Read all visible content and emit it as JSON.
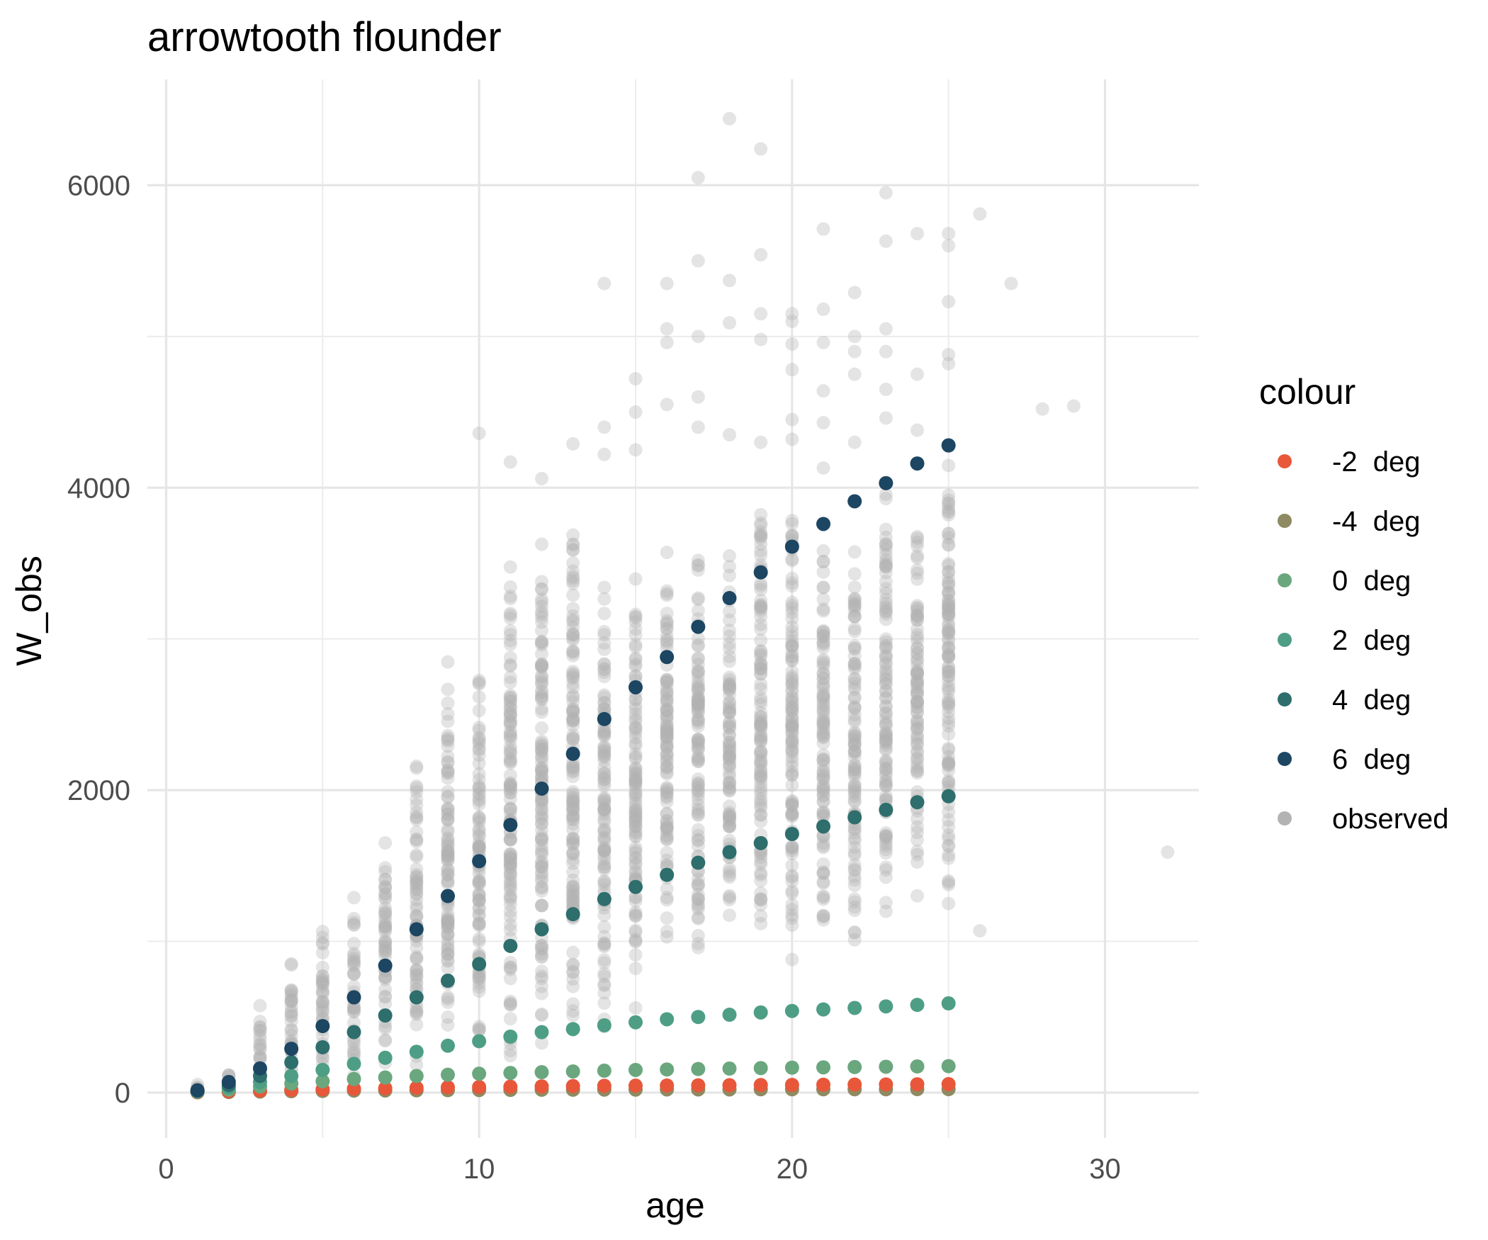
{
  "chart_data": {
    "type": "scatter",
    "title": "arrowtooth flounder",
    "xlabel": "age",
    "ylabel": "W_obs",
    "xlim": [
      -0.6,
      33.0
    ],
    "ylim": [
      -300,
      6700
    ],
    "x_ticks": [
      0,
      10,
      20,
      30
    ],
    "x_tick_labels": [
      "0",
      "10",
      "20",
      "30"
    ],
    "y_ticks": [
      0,
      2000,
      4000,
      6000
    ],
    "y_tick_labels": [
      "0",
      "2000",
      "4000",
      "6000"
    ],
    "grid": true,
    "legend": {
      "title": "colour",
      "position": "right",
      "entries": [
        {
          "label": "-2  deg",
          "color": "#E8573A"
        },
        {
          "label": "-4  deg",
          "color": "#8E8A62"
        },
        {
          "label": "0  deg",
          "color": "#6BA77E"
        },
        {
          "label": "2  deg",
          "color": "#4E9E86"
        },
        {
          "label": "4  deg",
          "color": "#2E6E6C"
        },
        {
          "label": "6  deg",
          "color": "#1C4662"
        },
        {
          "label": "observed",
          "color": "#B3B3B3"
        }
      ]
    },
    "observed": {
      "name": "observed",
      "color": "#B3B3B3",
      "ranges": [
        {
          "age": 1,
          "min": 5,
          "max": 60
        },
        {
          "age": 2,
          "min": 10,
          "max": 185
        },
        {
          "age": 3,
          "min": 20,
          "max": 620
        },
        {
          "age": 4,
          "min": 40,
          "max": 960
        },
        {
          "age": 5,
          "min": 60,
          "max": 1140
        },
        {
          "age": 6,
          "min": 80,
          "max": 1380
        },
        {
          "age": 7,
          "min": 100,
          "max": 1740
        },
        {
          "age": 8,
          "min": 130,
          "max": 2350
        },
        {
          "age": 9,
          "min": 160,
          "max": 2990
        },
        {
          "age": 10,
          "min": 200,
          "max": 2950
        },
        {
          "age": 11,
          "min": 230,
          "max": 3680
        },
        {
          "age": 12,
          "min": 250,
          "max": 3800
        },
        {
          "age": 13,
          "min": 280,
          "max": 4020
        },
        {
          "age": 14,
          "min": 300,
          "max": 3460
        },
        {
          "age": 15,
          "min": 500,
          "max": 3550
        },
        {
          "age": 16,
          "min": 800,
          "max": 3780
        },
        {
          "age": 17,
          "min": 850,
          "max": 3800
        },
        {
          "age": 18,
          "min": 900,
          "max": 3700
        },
        {
          "age": 19,
          "min": 950,
          "max": 4100
        },
        {
          "age": 20,
          "min": 850,
          "max": 4020
        },
        {
          "age": 21,
          "min": 900,
          "max": 3700
        },
        {
          "age": 22,
          "min": 950,
          "max": 3750
        },
        {
          "age": 23,
          "min": 1150,
          "max": 4150
        },
        {
          "age": 24,
          "min": 1300,
          "max": 3900
        },
        {
          "age": 25,
          "min": 1250,
          "max": 4350
        }
      ],
      "points": [
        {
          "x": 10,
          "y": 4360
        },
        {
          "x": 11,
          "y": 4170
        },
        {
          "x": 12,
          "y": 4060
        },
        {
          "x": 13,
          "y": 4290
        },
        {
          "x": 14,
          "y": 5350
        },
        {
          "x": 14,
          "y": 4400
        },
        {
          "x": 14,
          "y": 4220
        },
        {
          "x": 15,
          "y": 4720
        },
        {
          "x": 15,
          "y": 4500
        },
        {
          "x": 15,
          "y": 4250
        },
        {
          "x": 16,
          "y": 5350
        },
        {
          "x": 16,
          "y": 5050
        },
        {
          "x": 16,
          "y": 4960
        },
        {
          "x": 16,
          "y": 4550
        },
        {
          "x": 17,
          "y": 6050
        },
        {
          "x": 17,
          "y": 5500
        },
        {
          "x": 17,
          "y": 5000
        },
        {
          "x": 17,
          "y": 4600
        },
        {
          "x": 17,
          "y": 4400
        },
        {
          "x": 18,
          "y": 6440
        },
        {
          "x": 18,
          "y": 5370
        },
        {
          "x": 18,
          "y": 5090
        },
        {
          "x": 18,
          "y": 4350
        },
        {
          "x": 19,
          "y": 6240
        },
        {
          "x": 19,
          "y": 5540
        },
        {
          "x": 19,
          "y": 5150
        },
        {
          "x": 19,
          "y": 4980
        },
        {
          "x": 19,
          "y": 4300
        },
        {
          "x": 20,
          "y": 5150
        },
        {
          "x": 20,
          "y": 5100
        },
        {
          "x": 20,
          "y": 4950
        },
        {
          "x": 20,
          "y": 4780
        },
        {
          "x": 20,
          "y": 4450
        },
        {
          "x": 20,
          "y": 4320
        },
        {
          "x": 21,
          "y": 5710
        },
        {
          "x": 21,
          "y": 5180
        },
        {
          "x": 21,
          "y": 4960
        },
        {
          "x": 21,
          "y": 4640
        },
        {
          "x": 21,
          "y": 4430
        },
        {
          "x": 21,
          "y": 4130
        },
        {
          "x": 22,
          "y": 5290
        },
        {
          "x": 22,
          "y": 5000
        },
        {
          "x": 22,
          "y": 4900
        },
        {
          "x": 22,
          "y": 4750
        },
        {
          "x": 22,
          "y": 4300
        },
        {
          "x": 23,
          "y": 5950
        },
        {
          "x": 23,
          "y": 5630
        },
        {
          "x": 23,
          "y": 5050
        },
        {
          "x": 23,
          "y": 4900
        },
        {
          "x": 23,
          "y": 4650
        },
        {
          "x": 23,
          "y": 4460
        },
        {
          "x": 24,
          "y": 5680
        },
        {
          "x": 24,
          "y": 4750
        },
        {
          "x": 24,
          "y": 4380
        },
        {
          "x": 24,
          "y": 3220
        },
        {
          "x": 25,
          "y": 5680
        },
        {
          "x": 25,
          "y": 5600
        },
        {
          "x": 25,
          "y": 5230
        },
        {
          "x": 25,
          "y": 4880
        },
        {
          "x": 25,
          "y": 4820
        },
        {
          "x": 25,
          "y": 3820
        },
        {
          "x": 25,
          "y": 3350
        },
        {
          "x": 25,
          "y": 2880
        },
        {
          "x": 25,
          "y": 2050
        },
        {
          "x": 25,
          "y": 1250
        },
        {
          "x": 23,
          "y": 3590
        },
        {
          "x": 23,
          "y": 3380
        },
        {
          "x": 23,
          "y": 2740
        },
        {
          "x": 23,
          "y": 2340
        },
        {
          "x": 23,
          "y": 2190
        },
        {
          "x": 22,
          "y": 3150
        },
        {
          "x": 22,
          "y": 3050
        },
        {
          "x": 22,
          "y": 2380
        },
        {
          "x": 22,
          "y": 2300
        },
        {
          "x": 22,
          "y": 1570
        },
        {
          "x": 22,
          "y": 1280
        },
        {
          "x": 21,
          "y": 2850
        },
        {
          "x": 21,
          "y": 2620
        },
        {
          "x": 21,
          "y": 2540
        },
        {
          "x": 21,
          "y": 2120
        },
        {
          "x": 21,
          "y": 1650
        },
        {
          "x": 21,
          "y": 1300
        },
        {
          "x": 26,
          "y": 5810
        },
        {
          "x": 26,
          "y": 1070
        },
        {
          "x": 27,
          "y": 5350
        },
        {
          "x": 28,
          "y": 4520
        },
        {
          "x": 29,
          "y": 4540
        },
        {
          "x": 32,
          "y": 1590
        }
      ]
    },
    "series": [
      {
        "name": "-4  deg",
        "color": "#8E8A62",
        "x": [
          1,
          2,
          3,
          4,
          5,
          6,
          7,
          8,
          9,
          10,
          11,
          12,
          13,
          14,
          15,
          16,
          17,
          18,
          19,
          20,
          21,
          22,
          23,
          24,
          25
        ],
        "y": [
          2,
          4,
          7,
          9,
          11,
          13,
          14,
          15,
          16,
          17,
          18,
          19,
          19,
          20,
          20,
          21,
          21,
          21,
          22,
          22,
          22,
          22,
          22,
          23,
          23
        ]
      },
      {
        "name": "-2  deg",
        "color": "#E8573A",
        "x": [
          1,
          2,
          3,
          4,
          5,
          6,
          7,
          8,
          9,
          10,
          11,
          12,
          13,
          14,
          15,
          16,
          17,
          18,
          19,
          20,
          21,
          22,
          23,
          24,
          25
        ],
        "y": [
          3,
          8,
          13,
          18,
          22,
          26,
          29,
          32,
          35,
          37,
          39,
          41,
          43,
          45,
          46,
          47,
          48,
          49,
          50,
          51,
          52,
          53,
          54,
          55,
          56
        ]
      },
      {
        "name": "0  deg",
        "color": "#6BA77E",
        "x": [
          1,
          2,
          3,
          4,
          5,
          6,
          7,
          8,
          9,
          10,
          11,
          12,
          13,
          14,
          15,
          16,
          17,
          18,
          19,
          20,
          21,
          22,
          23,
          24,
          25
        ],
        "y": [
          6,
          20,
          40,
          60,
          75,
          90,
          100,
          110,
          118,
          125,
          130,
          135,
          140,
          145,
          150,
          153,
          156,
          159,
          162,
          165,
          167,
          169,
          171,
          173,
          175
        ]
      },
      {
        "name": "2  deg",
        "color": "#4E9E86",
        "x": [
          1,
          2,
          3,
          4,
          5,
          6,
          7,
          8,
          9,
          10,
          11,
          12,
          13,
          14,
          15,
          16,
          17,
          18,
          19,
          20,
          21,
          22,
          23,
          24,
          25
        ],
        "y": [
          8,
          35,
          70,
          110,
          150,
          190,
          230,
          270,
          310,
          340,
          370,
          400,
          420,
          445,
          465,
          485,
          500,
          515,
          530,
          540,
          550,
          560,
          570,
          580,
          590
        ]
      },
      {
        "name": "4  deg",
        "color": "#2E6E6C",
        "x": [
          1,
          2,
          3,
          4,
          5,
          6,
          7,
          8,
          9,
          10,
          11,
          12,
          13,
          14,
          15,
          16,
          17,
          18,
          19,
          20,
          21,
          22,
          23,
          24,
          25
        ],
        "y": [
          12,
          50,
          110,
          200,
          300,
          400,
          510,
          630,
          740,
          850,
          970,
          1080,
          1180,
          1280,
          1360,
          1440,
          1520,
          1590,
          1650,
          1710,
          1760,
          1820,
          1870,
          1920,
          1960
        ]
      },
      {
        "name": "6  deg",
        "color": "#1C4662",
        "x": [
          1,
          2,
          3,
          4,
          5,
          6,
          7,
          8,
          9,
          10,
          11,
          12,
          13,
          14,
          15,
          16,
          17,
          18,
          19,
          20,
          21,
          22,
          23,
          24,
          25
        ],
        "y": [
          15,
          70,
          160,
          290,
          440,
          630,
          840,
          1080,
          1300,
          1530,
          1770,
          2010,
          2240,
          2470,
          2680,
          2880,
          3080,
          3270,
          3440,
          3610,
          3760,
          3910,
          4030,
          4160,
          4280
        ]
      }
    ]
  }
}
